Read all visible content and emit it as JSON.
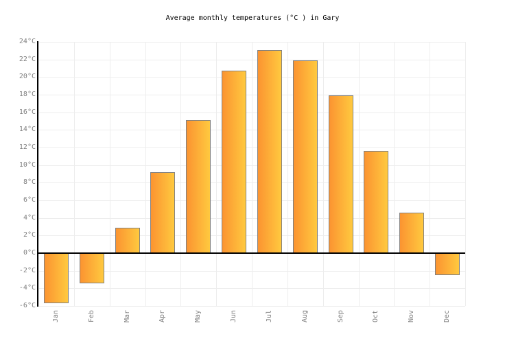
{
  "title": "Average monthly temperatures (°C ) in Gary",
  "chart_data": {
    "type": "bar",
    "title": "Average monthly temperatures (°C ) in Gary",
    "categories": [
      "Jan",
      "Feb",
      "Mar",
      "Apr",
      "May",
      "Jun",
      "Jul",
      "Aug",
      "Sep",
      "Oct",
      "Nov",
      "Dec"
    ],
    "values": [
      -5.7,
      -3.4,
      2.9,
      9.2,
      15.1,
      20.7,
      23.1,
      21.9,
      17.9,
      11.6,
      4.6,
      -2.5
    ],
    "xlabel": "",
    "ylabel": "",
    "ylim": [
      -6,
      24
    ],
    "ytick_step": 2,
    "ytick_suffix": "°C",
    "grid": true,
    "legend_position": "none",
    "colors": {
      "bar_gradient_left": "#FB9431",
      "bar_gradient_right": "#FFC93F",
      "bar_border": "#808080",
      "axis": "#000000",
      "tick_label": "#808080",
      "gridline": "#EDEDED",
      "title": "#000000",
      "background": "#FFFFFF"
    }
  }
}
